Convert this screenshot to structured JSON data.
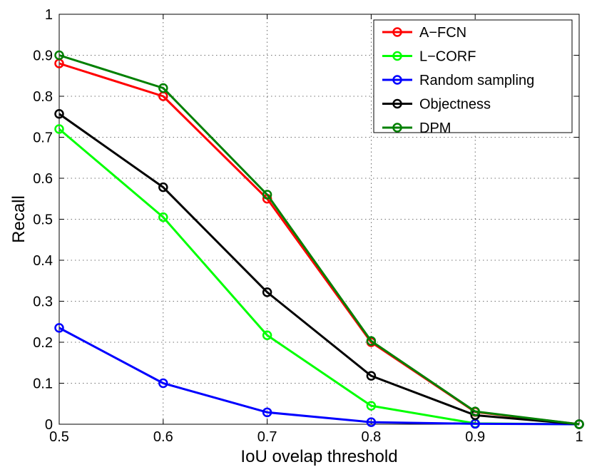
{
  "chart_data": {
    "type": "line",
    "title": "",
    "xlabel": "IoU ovelap threshold",
    "ylabel": "Recall",
    "xlim": [
      0.5,
      1
    ],
    "ylim": [
      0,
      1
    ],
    "xticks": [
      "0.5",
      "0.6",
      "0.7",
      "0.8",
      "0.9",
      "1"
    ],
    "yticks": [
      "0",
      "0.1",
      "0.2",
      "0.3",
      "0.4",
      "0.5",
      "0.6",
      "0.7",
      "0.8",
      "0.9",
      "1"
    ],
    "grid": true,
    "legend_position": "top-right",
    "x": [
      0.5,
      0.6,
      0.7,
      0.8,
      0.9,
      1.0
    ],
    "series": [
      {
        "name": "A−FCN",
        "color": "#ff0000",
        "values": [
          0.88,
          0.8,
          0.55,
          0.2,
          0.03,
          0.0
        ]
      },
      {
        "name": "L−CORF",
        "color": "#00ff00",
        "values": [
          0.72,
          0.505,
          0.217,
          0.045,
          0.002,
          0.0
        ]
      },
      {
        "name": "Random sampling",
        "color": "#0000ff",
        "values": [
          0.235,
          0.1,
          0.029,
          0.005,
          0.001,
          0.0
        ]
      },
      {
        "name": "Objectness",
        "color": "#000000",
        "values": [
          0.757,
          0.578,
          0.322,
          0.118,
          0.022,
          0.0
        ]
      },
      {
        "name": "DPM",
        "color": "#008000",
        "values": [
          0.9,
          0.82,
          0.56,
          0.203,
          0.031,
          0.0
        ]
      }
    ]
  }
}
